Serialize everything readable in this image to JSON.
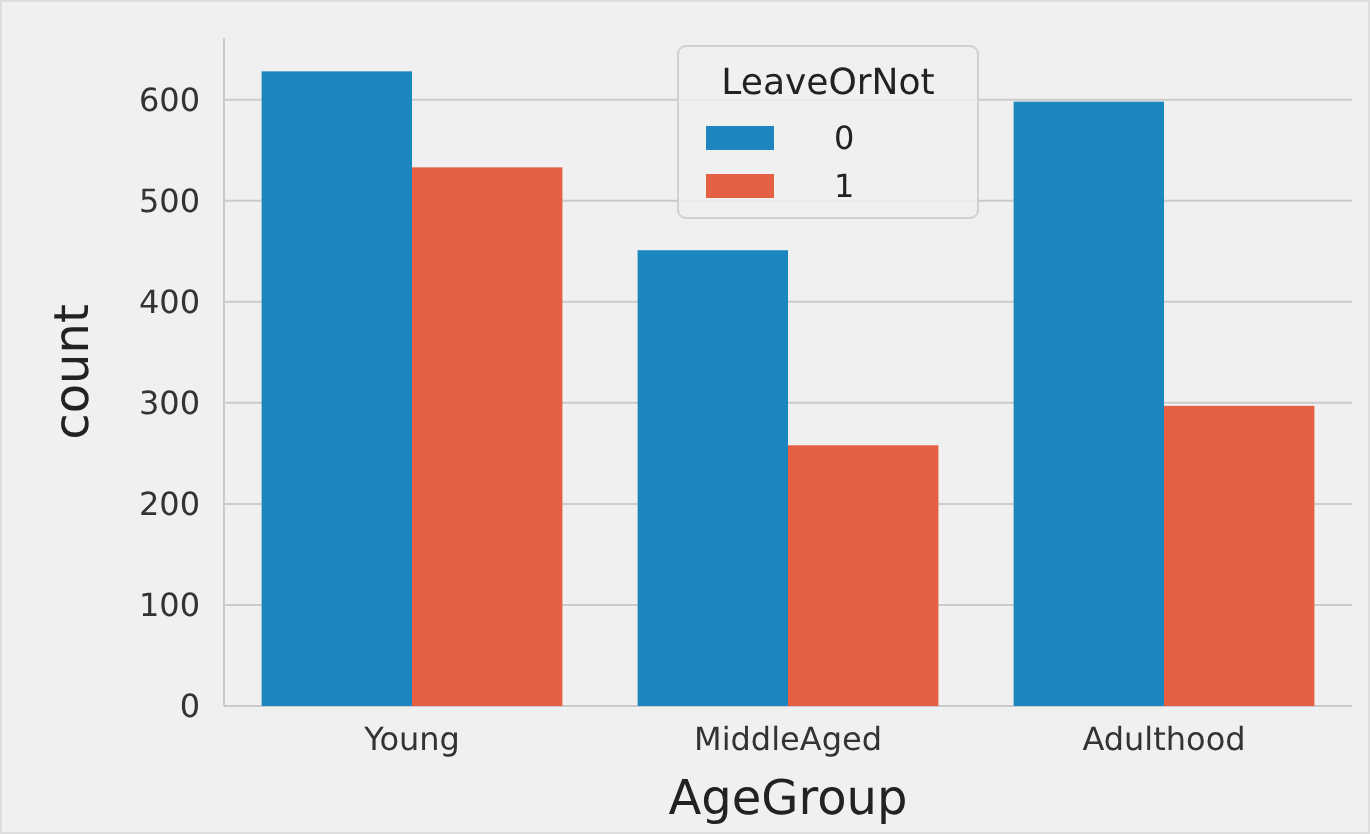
{
  "chart_data": {
    "type": "bar",
    "xlabel": "AgeGroup",
    "ylabel": "count",
    "legend_title": "LeaveOrNot",
    "categories": [
      "Young",
      "MiddleAged",
      "Adulthood"
    ],
    "series": [
      {
        "name": "0",
        "color": "#1c87bf",
        "values": [
          628,
          451,
          598
        ]
      },
      {
        "name": "1",
        "color": "#e45f44",
        "values": [
          533,
          258,
          297
        ]
      }
    ],
    "ylim": [
      0,
      661
    ],
    "yticks": [
      0,
      100,
      200,
      300,
      400,
      500,
      600
    ],
    "grid": "y",
    "legend": "top"
  }
}
